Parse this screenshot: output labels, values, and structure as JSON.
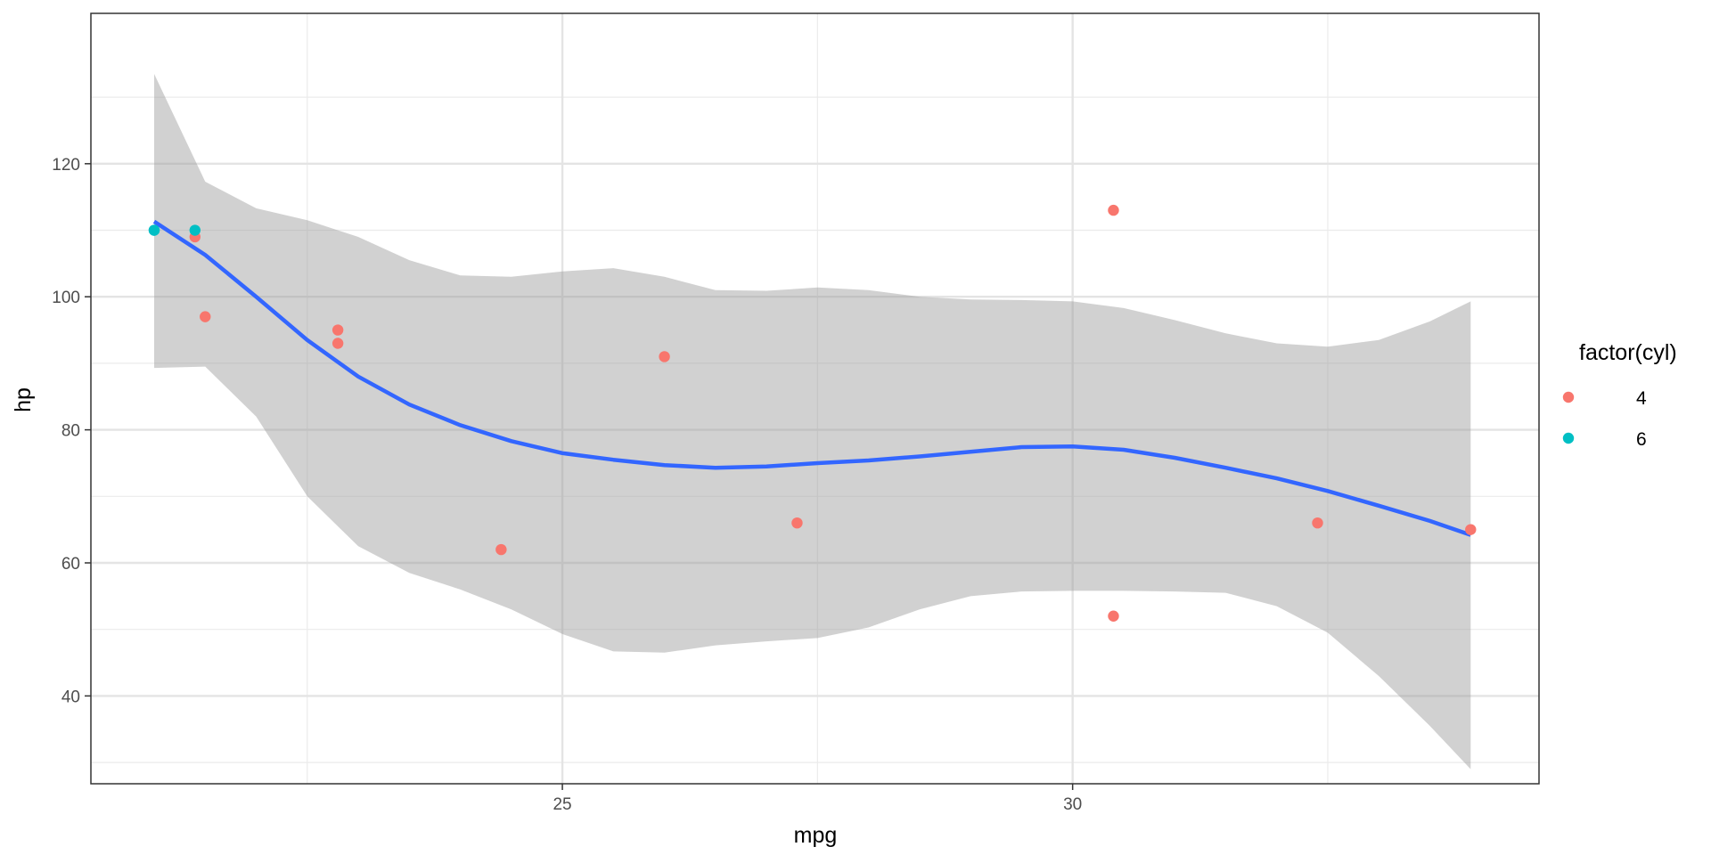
{
  "chart_data": {
    "type": "scatter",
    "title": "",
    "xlabel": "mpg",
    "ylabel": "hp",
    "xlim": [
      20.38,
      34.57
    ],
    "ylim": [
      26.8,
      142.6
    ],
    "x_ticks": [
      25,
      30
    ],
    "y_ticks": [
      40,
      60,
      80,
      100,
      120
    ],
    "grid": true,
    "legend": {
      "title": "factor(cyl)",
      "position": "right",
      "entries": [
        {
          "label": "4",
          "color": "#F8766D"
        },
        {
          "label": "6",
          "color": "#00BFC4"
        }
      ]
    },
    "series": [
      {
        "name": "4",
        "color": "#F8766D",
        "points": [
          {
            "x": 21.4,
            "y": 109
          },
          {
            "x": 21.5,
            "y": 97
          },
          {
            "x": 22.8,
            "y": 95
          },
          {
            "x": 22.8,
            "y": 93
          },
          {
            "x": 24.4,
            "y": 62
          },
          {
            "x": 26.0,
            "y": 91
          },
          {
            "x": 27.3,
            "y": 66
          },
          {
            "x": 30.4,
            "y": 113
          },
          {
            "x": 30.4,
            "y": 52
          },
          {
            "x": 32.4,
            "y": 66
          },
          {
            "x": 33.9,
            "y": 65
          }
        ]
      },
      {
        "name": "6",
        "color": "#00BFC4",
        "points": [
          {
            "x": 21.0,
            "y": 110
          },
          {
            "x": 21.0,
            "y": 110
          },
          {
            "x": 21.4,
            "y": 110
          }
        ]
      }
    ],
    "smooth": {
      "method": "loess",
      "color": "#3366FF",
      "ribbon_color": "#999999",
      "fitted": [
        {
          "x": 21.0,
          "y": 111.3
        },
        {
          "x": 21.5,
          "y": 106.3
        },
        {
          "x": 22.0,
          "y": 100.0
        },
        {
          "x": 22.5,
          "y": 93.5
        },
        {
          "x": 23.0,
          "y": 88.0
        },
        {
          "x": 23.5,
          "y": 83.8
        },
        {
          "x": 24.0,
          "y": 80.7
        },
        {
          "x": 24.5,
          "y": 78.3
        },
        {
          "x": 25.0,
          "y": 76.5
        },
        {
          "x": 25.5,
          "y": 75.5
        },
        {
          "x": 26.0,
          "y": 74.7
        },
        {
          "x": 26.5,
          "y": 74.3
        },
        {
          "x": 27.0,
          "y": 74.5
        },
        {
          "x": 27.5,
          "y": 75.0
        },
        {
          "x": 28.0,
          "y": 75.4
        },
        {
          "x": 28.5,
          "y": 76.0
        },
        {
          "x": 29.0,
          "y": 76.7
        },
        {
          "x": 29.5,
          "y": 77.4
        },
        {
          "x": 30.0,
          "y": 77.5
        },
        {
          "x": 30.5,
          "y": 77.0
        },
        {
          "x": 31.0,
          "y": 75.8
        },
        {
          "x": 31.5,
          "y": 74.3
        },
        {
          "x": 32.0,
          "y": 72.7
        },
        {
          "x": 32.5,
          "y": 70.8
        },
        {
          "x": 33.0,
          "y": 68.6
        },
        {
          "x": 33.5,
          "y": 66.3
        },
        {
          "x": 33.9,
          "y": 64.2
        }
      ],
      "upper": [
        {
          "x": 21.0,
          "y": 133.5
        },
        {
          "x": 21.5,
          "y": 117.3
        },
        {
          "x": 22.0,
          "y": 113.3
        },
        {
          "x": 22.5,
          "y": 111.5
        },
        {
          "x": 23.0,
          "y": 109.0
        },
        {
          "x": 23.5,
          "y": 105.5
        },
        {
          "x": 24.0,
          "y": 103.2
        },
        {
          "x": 24.5,
          "y": 103.0
        },
        {
          "x": 25.0,
          "y": 103.8
        },
        {
          "x": 25.5,
          "y": 104.3
        },
        {
          "x": 26.0,
          "y": 103.0
        },
        {
          "x": 26.5,
          "y": 101.0
        },
        {
          "x": 27.0,
          "y": 100.9
        },
        {
          "x": 27.5,
          "y": 101.4
        },
        {
          "x": 28.0,
          "y": 101.0
        },
        {
          "x": 28.5,
          "y": 100.0
        },
        {
          "x": 29.0,
          "y": 99.6
        },
        {
          "x": 29.5,
          "y": 99.5
        },
        {
          "x": 30.0,
          "y": 99.3
        },
        {
          "x": 30.5,
          "y": 98.3
        },
        {
          "x": 31.0,
          "y": 96.5
        },
        {
          "x": 31.5,
          "y": 94.5
        },
        {
          "x": 32.0,
          "y": 93.0
        },
        {
          "x": 32.5,
          "y": 92.5
        },
        {
          "x": 33.0,
          "y": 93.5
        },
        {
          "x": 33.5,
          "y": 96.3
        },
        {
          "x": 33.9,
          "y": 99.3
        }
      ],
      "lower": [
        {
          "x": 21.0,
          "y": 89.3
        },
        {
          "x": 21.5,
          "y": 89.5
        },
        {
          "x": 22.0,
          "y": 82.0
        },
        {
          "x": 22.5,
          "y": 70.0
        },
        {
          "x": 23.0,
          "y": 62.5
        },
        {
          "x": 23.5,
          "y": 58.5
        },
        {
          "x": 24.0,
          "y": 56.0
        },
        {
          "x": 24.5,
          "y": 53.0
        },
        {
          "x": 25.0,
          "y": 49.3
        },
        {
          "x": 25.5,
          "y": 46.7
        },
        {
          "x": 26.0,
          "y": 46.5
        },
        {
          "x": 26.5,
          "y": 47.6
        },
        {
          "x": 27.0,
          "y": 48.2
        },
        {
          "x": 27.5,
          "y": 48.7
        },
        {
          "x": 28.0,
          "y": 50.3
        },
        {
          "x": 28.5,
          "y": 53.0
        },
        {
          "x": 29.0,
          "y": 55.0
        },
        {
          "x": 29.5,
          "y": 55.7
        },
        {
          "x": 30.0,
          "y": 55.8
        },
        {
          "x": 30.5,
          "y": 55.8
        },
        {
          "x": 31.0,
          "y": 55.7
        },
        {
          "x": 31.5,
          "y": 55.5
        },
        {
          "x": 32.0,
          "y": 53.5
        },
        {
          "x": 32.5,
          "y": 49.5
        },
        {
          "x": 33.0,
          "y": 43.0
        },
        {
          "x": 33.5,
          "y": 35.5
        },
        {
          "x": 33.9,
          "y": 29.0
        }
      ]
    }
  }
}
